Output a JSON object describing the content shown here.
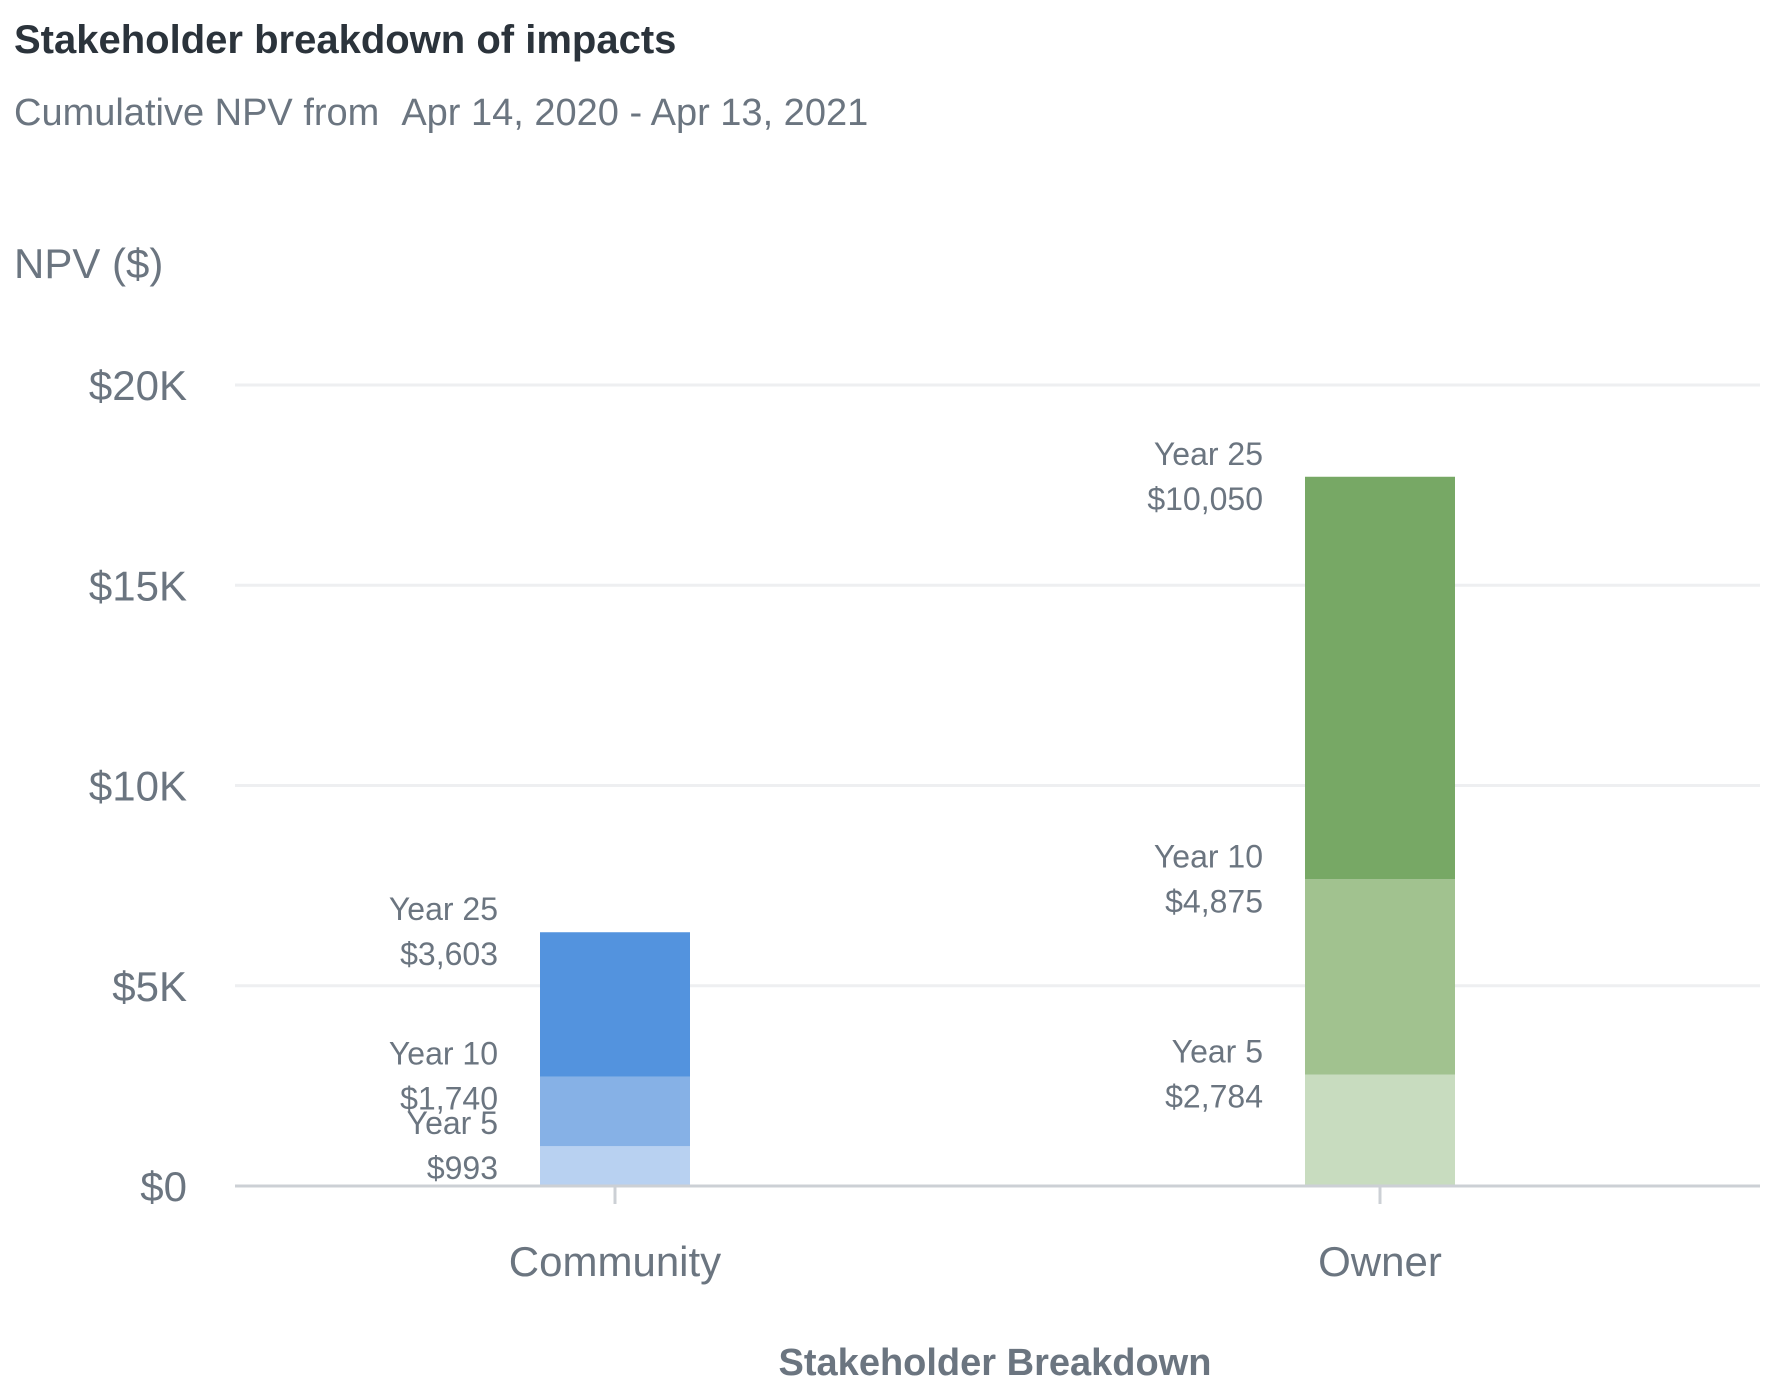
{
  "header": {
    "title": "Stakeholder breakdown of impacts",
    "subtitle_prefix": "Cumulative NPV from",
    "date_range": "Apr 14, 2020 - Apr 13, 2021"
  },
  "chart_data": {
    "type": "bar",
    "stacked": true,
    "categories": [
      "Community",
      "Owner"
    ],
    "ylabel": "NPV ($)",
    "xlabel": "Stakeholder Breakdown",
    "ylim": [
      0,
      20000
    ],
    "yticks": [
      {
        "value": 0,
        "label": "$0"
      },
      {
        "value": 5000,
        "label": "$5K"
      },
      {
        "value": 10000,
        "label": "$10K"
      },
      {
        "value": 15000,
        "label": "$15K"
      },
      {
        "value": 20000,
        "label": "$20K"
      }
    ],
    "grid": true,
    "segments": [
      {
        "category": "Community",
        "period": "Year 5",
        "value": 993,
        "value_label": "$993",
        "color": "#b8d1f1"
      },
      {
        "category": "Community",
        "period": "Year 10",
        "value": 1740,
        "value_label": "$1,740",
        "color": "#86b1e6"
      },
      {
        "category": "Community",
        "period": "Year 25",
        "value": 3603,
        "value_label": "$3,603",
        "color": "#5393de"
      },
      {
        "category": "Owner",
        "period": "Year 5",
        "value": 2784,
        "value_label": "$2,784",
        "color": "#c8dcbf"
      },
      {
        "category": "Owner",
        "period": "Year 10",
        "value": 4875,
        "value_label": "$4,875",
        "color": "#a1c28f"
      },
      {
        "category": "Owner",
        "period": "Year 25",
        "value": 10050,
        "value_label": "$10,050",
        "color": "#77a865"
      }
    ]
  }
}
